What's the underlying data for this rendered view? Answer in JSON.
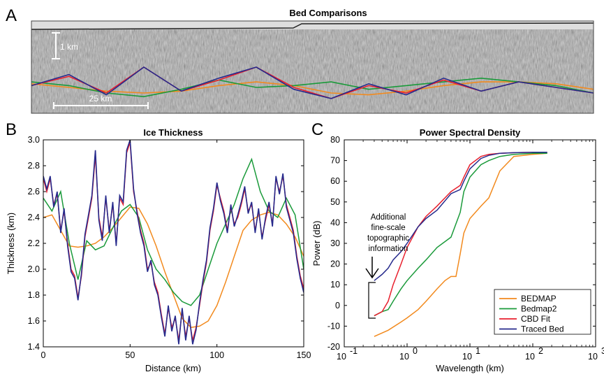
{
  "chart_data": [
    {
      "type": "image",
      "panel": "A",
      "title": "Bed Comparisons",
      "scale_vertical": "1 km",
      "scale_horizontal": "25 km",
      "series": [
        {
          "name": "BEDMAP",
          "color": "#f28a1e",
          "x": [
            0,
            10,
            20,
            30,
            40,
            50,
            60,
            70,
            80,
            90,
            100,
            110,
            120,
            130,
            140,
            150
          ],
          "y": [
            0.32,
            0.28,
            0.24,
            0.22,
            0.24,
            0.3,
            0.34,
            0.3,
            0.22,
            0.2,
            0.24,
            0.3,
            0.34,
            0.34,
            0.32,
            0.26
          ]
        },
        {
          "name": "Bedmap2",
          "color": "#1a9a3a",
          "x": [
            0,
            10,
            20,
            30,
            40,
            50,
            60,
            70,
            80,
            90,
            100,
            110,
            120,
            130,
            140,
            150
          ],
          "y": [
            0.34,
            0.3,
            0.22,
            0.18,
            0.26,
            0.36,
            0.28,
            0.3,
            0.34,
            0.26,
            0.3,
            0.34,
            0.38,
            0.34,
            0.3,
            0.22
          ]
        },
        {
          "name": "CBD Fit",
          "color": "#e8202e",
          "x": [
            0,
            10,
            20,
            30,
            40,
            50,
            60,
            70,
            80,
            90,
            100,
            110,
            120,
            130,
            140,
            150
          ],
          "y": [
            0.3,
            0.4,
            0.22,
            0.5,
            0.24,
            0.36,
            0.5,
            0.28,
            0.16,
            0.3,
            0.22,
            0.36,
            0.24,
            0.34,
            0.28,
            0.22
          ]
        },
        {
          "name": "Traced Bed",
          "color": "#262a8c",
          "x": [
            0,
            10,
            20,
            30,
            40,
            50,
            60,
            70,
            80,
            90,
            100,
            110,
            120,
            130,
            140,
            150
          ],
          "y": [
            0.3,
            0.42,
            0.2,
            0.5,
            0.24,
            0.38,
            0.5,
            0.26,
            0.16,
            0.32,
            0.2,
            0.38,
            0.24,
            0.34,
            0.28,
            0.22
          ]
        }
      ]
    },
    {
      "type": "line",
      "panel": "B",
      "title": "Ice Thickness",
      "xlabel": "Distance (km)",
      "ylabel": "Thickness (km)",
      "xlim": [
        0,
        150
      ],
      "ylim": [
        1.4,
        3.0
      ],
      "xticks": [
        "0",
        "50",
        "100",
        "150"
      ],
      "yticks": [
        "1.4",
        "1.6",
        "1.8",
        "2.0",
        "2.2",
        "2.4",
        "2.6",
        "2.8",
        "3.0"
      ],
      "series": [
        {
          "name": "BEDMAP",
          "color": "#f28a1e",
          "x": [
            0,
            5,
            10,
            15,
            20,
            25,
            30,
            35,
            40,
            45,
            50,
            55,
            60,
            65,
            70,
            75,
            80,
            85,
            90,
            95,
            100,
            105,
            110,
            115,
            120,
            125,
            130,
            135,
            140,
            145,
            150
          ],
          "y": [
            2.4,
            2.42,
            2.3,
            2.18,
            2.17,
            2.18,
            2.2,
            2.25,
            2.32,
            2.4,
            2.48,
            2.47,
            2.35,
            2.18,
            1.98,
            1.8,
            1.62,
            1.55,
            1.56,
            1.6,
            1.72,
            1.9,
            2.1,
            2.3,
            2.38,
            2.42,
            2.44,
            2.42,
            2.35,
            2.25,
            2.1
          ]
        },
        {
          "name": "Bedmap2",
          "color": "#1a9a3a",
          "x": [
            0,
            5,
            10,
            15,
            20,
            25,
            30,
            35,
            40,
            45,
            50,
            55,
            60,
            65,
            70,
            75,
            80,
            85,
            90,
            95,
            100,
            105,
            110,
            115,
            120,
            125,
            130,
            135,
            140,
            145,
            150
          ],
          "y": [
            2.55,
            2.45,
            2.6,
            2.2,
            1.92,
            2.22,
            2.15,
            2.18,
            2.32,
            2.45,
            2.5,
            2.4,
            2.15,
            2.0,
            1.92,
            1.82,
            1.75,
            1.72,
            1.8,
            2.0,
            2.2,
            2.35,
            2.5,
            2.7,
            2.85,
            2.6,
            2.45,
            2.4,
            2.55,
            2.42,
            2.0
          ]
        },
        {
          "name": "CBD Fit",
          "color": "#e8202e",
          "x": [
            0,
            2,
            4,
            6,
            8,
            10,
            12,
            14,
            16,
            18,
            20,
            22,
            24,
            26,
            28,
            30,
            32,
            34,
            36,
            38,
            40,
            42,
            44,
            46,
            48,
            50,
            52,
            54,
            56,
            58,
            60,
            62,
            64,
            66,
            68,
            70,
            72,
            74,
            76,
            78,
            80,
            82,
            84,
            86,
            88,
            90,
            92,
            94,
            96,
            98,
            100,
            102,
            104,
            106,
            108,
            110,
            112,
            114,
            116,
            118,
            120,
            122,
            124,
            126,
            128,
            130,
            132,
            134,
            136,
            138,
            140,
            142,
            144,
            146,
            148,
            150
          ],
          "y": [
            2.7,
            2.6,
            2.7,
            2.5,
            2.58,
            2.3,
            2.45,
            2.2,
            2.0,
            1.95,
            1.78,
            1.95,
            2.25,
            2.4,
            2.55,
            2.88,
            2.4,
            2.25,
            2.55,
            2.3,
            2.5,
            2.2,
            2.55,
            2.5,
            2.9,
            2.98,
            2.6,
            2.45,
            2.3,
            2.2,
            2.0,
            2.05,
            1.9,
            1.82,
            1.65,
            1.5,
            1.7,
            1.55,
            1.62,
            1.45,
            1.68,
            1.48,
            1.62,
            1.45,
            1.55,
            1.72,
            1.9,
            2.05,
            2.3,
            2.45,
            2.65,
            2.55,
            2.45,
            2.3,
            2.48,
            2.35,
            2.4,
            2.5,
            2.62,
            2.45,
            2.5,
            2.3,
            2.45,
            2.25,
            2.38,
            2.5,
            2.35,
            2.7,
            2.6,
            2.72,
            2.5,
            2.4,
            2.3,
            2.1,
            1.95,
            1.85
          ]
        },
        {
          "name": "Traced Bed",
          "color": "#262a8c",
          "x": [
            0,
            2,
            4,
            6,
            8,
            10,
            12,
            14,
            16,
            18,
            20,
            22,
            24,
            26,
            28,
            30,
            32,
            34,
            36,
            38,
            40,
            42,
            44,
            46,
            48,
            50,
            52,
            54,
            56,
            58,
            60,
            62,
            64,
            66,
            68,
            70,
            72,
            74,
            76,
            78,
            80,
            82,
            84,
            86,
            88,
            90,
            92,
            94,
            96,
            98,
            100,
            102,
            104,
            106,
            108,
            110,
            112,
            114,
            116,
            118,
            120,
            122,
            124,
            126,
            128,
            130,
            132,
            134,
            136,
            138,
            140,
            142,
            144,
            146,
            148,
            150
          ],
          "y": [
            2.72,
            2.62,
            2.72,
            2.48,
            2.6,
            2.28,
            2.47,
            2.18,
            1.98,
            1.93,
            1.76,
            1.97,
            2.27,
            2.42,
            2.57,
            2.92,
            2.38,
            2.22,
            2.57,
            2.28,
            2.52,
            2.18,
            2.57,
            2.52,
            2.92,
            3.0,
            2.62,
            2.43,
            2.28,
            2.18,
            1.98,
            2.07,
            1.88,
            1.8,
            1.63,
            1.48,
            1.72,
            1.52,
            1.64,
            1.42,
            1.7,
            1.45,
            1.64,
            1.42,
            1.53,
            1.74,
            1.92,
            2.07,
            2.32,
            2.47,
            2.67,
            2.53,
            2.43,
            2.28,
            2.5,
            2.33,
            2.42,
            2.52,
            2.64,
            2.43,
            2.52,
            2.28,
            2.47,
            2.23,
            2.4,
            2.52,
            2.33,
            2.72,
            2.58,
            2.74,
            2.48,
            2.38,
            2.28,
            2.08,
            1.93,
            1.82
          ]
        }
      ]
    },
    {
      "type": "line",
      "panel": "C",
      "title": "Power Spectral Density",
      "xlabel": "Wavelength (km)",
      "ylabel": "Power (dB)",
      "xscale": "log",
      "xlim": [
        0.1,
        1000
      ],
      "ylim": [
        -20,
        80
      ],
      "xticks_base": [
        "10",
        "10",
        "10",
        "10",
        "10"
      ],
      "xticks_exp": [
        "-1",
        "0",
        "1",
        "2",
        "3"
      ],
      "yticks": [
        "-20",
        "-10",
        "0",
        "10",
        "20",
        "30",
        "40",
        "50",
        "60",
        "70",
        "80"
      ],
      "legend_position": "bottom-right",
      "annotation": [
        "Additional",
        "fine-scale",
        "topographic",
        "information"
      ],
      "series": [
        {
          "name": "BEDMAP",
          "color": "#f28a1e",
          "x": [
            0.3,
            0.5,
            0.8,
            1.0,
            1.5,
            2.0,
            3.0,
            4.0,
            5.0,
            6.0,
            7.0,
            8.0,
            10,
            15,
            20,
            30,
            50,
            100,
            170
          ],
          "y": [
            -15,
            -12,
            -8,
            -6,
            -2,
            2,
            8,
            12,
            14,
            14,
            25,
            35,
            42,
            48,
            52,
            65,
            72,
            73,
            73.5
          ]
        },
        {
          "name": "Bedmap2",
          "color": "#1a9a3a",
          "x": [
            0.3,
            0.4,
            0.5,
            0.6,
            0.8,
            1.0,
            1.5,
            2.0,
            3.0,
            5.0,
            7.0,
            8.0,
            10,
            15,
            20,
            30,
            50,
            100,
            170
          ],
          "y": [
            -5,
            -3,
            -2,
            2,
            8,
            12,
            18,
            22,
            28,
            33,
            45,
            55,
            62,
            68,
            70,
            72,
            73,
            73.5,
            73.5
          ]
        },
        {
          "name": "CBD Fit",
          "color": "#e8202e",
          "x": [
            0.3,
            0.4,
            0.5,
            0.6,
            0.8,
            1.0,
            1.5,
            2.0,
            3.0,
            5.0,
            7.0,
            8.0,
            10,
            15,
            20,
            30,
            50,
            100,
            170
          ],
          "y": [
            -5,
            -3,
            2,
            10,
            20,
            28,
            38,
            43,
            48,
            55,
            58,
            62,
            68,
            72,
            73,
            73.5,
            73.8,
            74,
            74
          ]
        },
        {
          "name": "Traced Bed",
          "color": "#262a8c",
          "x": [
            0.3,
            0.4,
            0.5,
            0.6,
            0.8,
            1.0,
            1.5,
            2.0,
            3.0,
            5.0,
            7.0,
            8.0,
            10,
            15,
            20,
            30,
            50,
            100,
            170
          ],
          "y": [
            12,
            15,
            18,
            22,
            26,
            30,
            38,
            42,
            46,
            54,
            56,
            60,
            66,
            71,
            72.5,
            73.5,
            73.8,
            74,
            74
          ]
        }
      ]
    }
  ],
  "labels": {
    "panel_a": "A",
    "panel_b": "B",
    "panel_c": "C"
  },
  "colors": {
    "bedmap": "#f28a1e",
    "bedmap2": "#1a9a3a",
    "cbd_fit": "#e8202e",
    "traced_bed": "#262a8c"
  }
}
